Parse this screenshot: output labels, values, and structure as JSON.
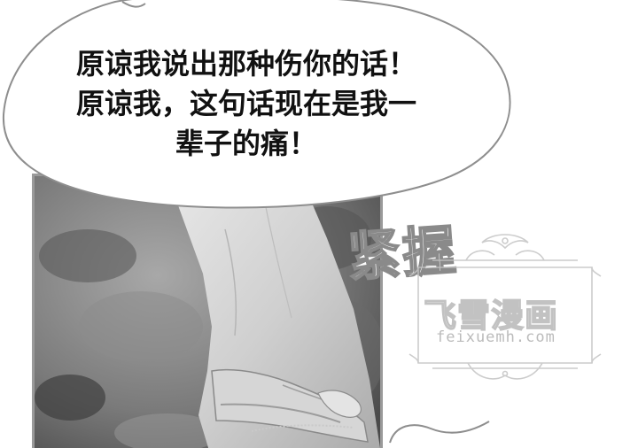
{
  "speech_bubble": {
    "lines": [
      "原谅我说出那种伤你的话！",
      "原谅我，这句话现在是我一",
      "辈子的痛！"
    ]
  },
  "sound_effect": {
    "text": "紧握"
  },
  "watermark": {
    "title": "飞雪漫画",
    "url": "feixuemh.com"
  }
}
